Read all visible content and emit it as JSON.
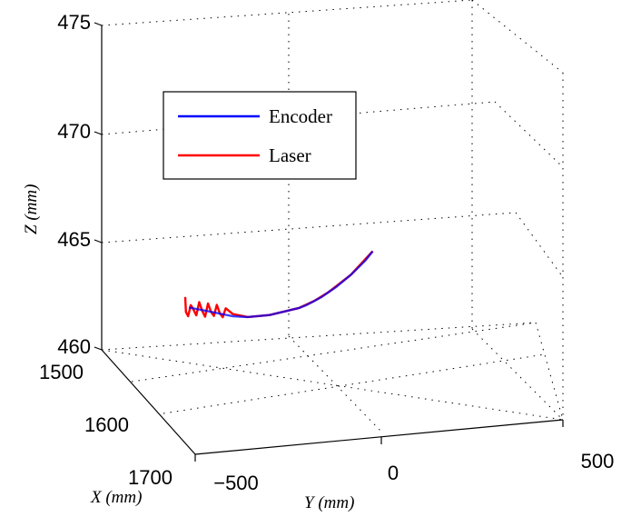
{
  "chart_data": {
    "type": "line",
    "projection": "3d",
    "xlabel": "X (mm)",
    "ylabel": "Y (mm)",
    "zlabel": "Z (mm)",
    "xlim": [
      1500,
      1700
    ],
    "ylim": [
      -500,
      500
    ],
    "zlim": [
      460,
      475
    ],
    "xticks": [
      "1500",
      "1600",
      "1700"
    ],
    "yticks": [
      "−500",
      "0",
      "500"
    ],
    "zticks": [
      "460",
      "465",
      "470",
      "475"
    ],
    "grid": true,
    "legend_position": "top-left",
    "series": [
      {
        "name": "Encoder",
        "color": "#0000ff",
        "x": [
          1600,
          1600,
          1600,
          1600,
          1600,
          1600,
          1600,
          1600,
          1600,
          1600,
          1600,
          1600,
          1600,
          1600,
          1600,
          1600,
          1600,
          1600,
          1600,
          1600,
          1600,
          1600,
          1600,
          1600,
          1600,
          1600
        ],
        "y": [
          -390,
          -370,
          -350,
          -330,
          -310,
          -290,
          -270,
          -250,
          -230,
          -210,
          -190,
          -170,
          -150,
          -130,
          -110,
          -90,
          -70,
          -50,
          -30,
          -10,
          10,
          30,
          50,
          70,
          90,
          110
        ],
        "z": [
          464.2,
          464.1,
          464.0,
          463.9,
          463.8,
          463.7,
          463.6,
          463.55,
          463.5,
          463.5,
          463.5,
          463.5,
          463.55,
          463.6,
          463.65,
          463.7,
          463.8,
          463.95,
          464.1,
          464.3,
          464.5,
          464.75,
          465.0,
          465.3,
          465.6,
          466.0
        ]
      },
      {
        "name": "Laser",
        "color": "#ff0000",
        "x": [
          1600,
          1600,
          1600,
          1600,
          1600,
          1600,
          1600,
          1600,
          1600,
          1600,
          1600,
          1600,
          1600,
          1600,
          1600,
          1600,
          1600,
          1600,
          1600,
          1600,
          1600,
          1600,
          1600,
          1600,
          1600,
          1600,
          1600,
          1600,
          1600,
          1600
        ],
        "y": [
          -400,
          -398,
          -392,
          -385,
          -378,
          -370,
          -362,
          -354,
          -346,
          -338,
          -330,
          -322,
          -314,
          -306,
          -298,
          -290,
          -270,
          -250,
          -230,
          -210,
          -190,
          -170,
          -150,
          -130,
          -110,
          -90,
          -50,
          -10,
          50,
          110
        ],
        "z": [
          464.7,
          464.0,
          463.8,
          464.3,
          464.1,
          463.8,
          464.4,
          464.0,
          463.7,
          464.3,
          463.9,
          463.7,
          464.2,
          463.8,
          463.6,
          464.0,
          463.7,
          463.6,
          463.5,
          463.5,
          463.5,
          463.5,
          463.55,
          463.6,
          463.65,
          463.7,
          463.95,
          464.3,
          465.0,
          466.0
        ]
      }
    ]
  },
  "colors": {
    "grid": "#000000",
    "axis": "#000000",
    "background": "#ffffff"
  }
}
